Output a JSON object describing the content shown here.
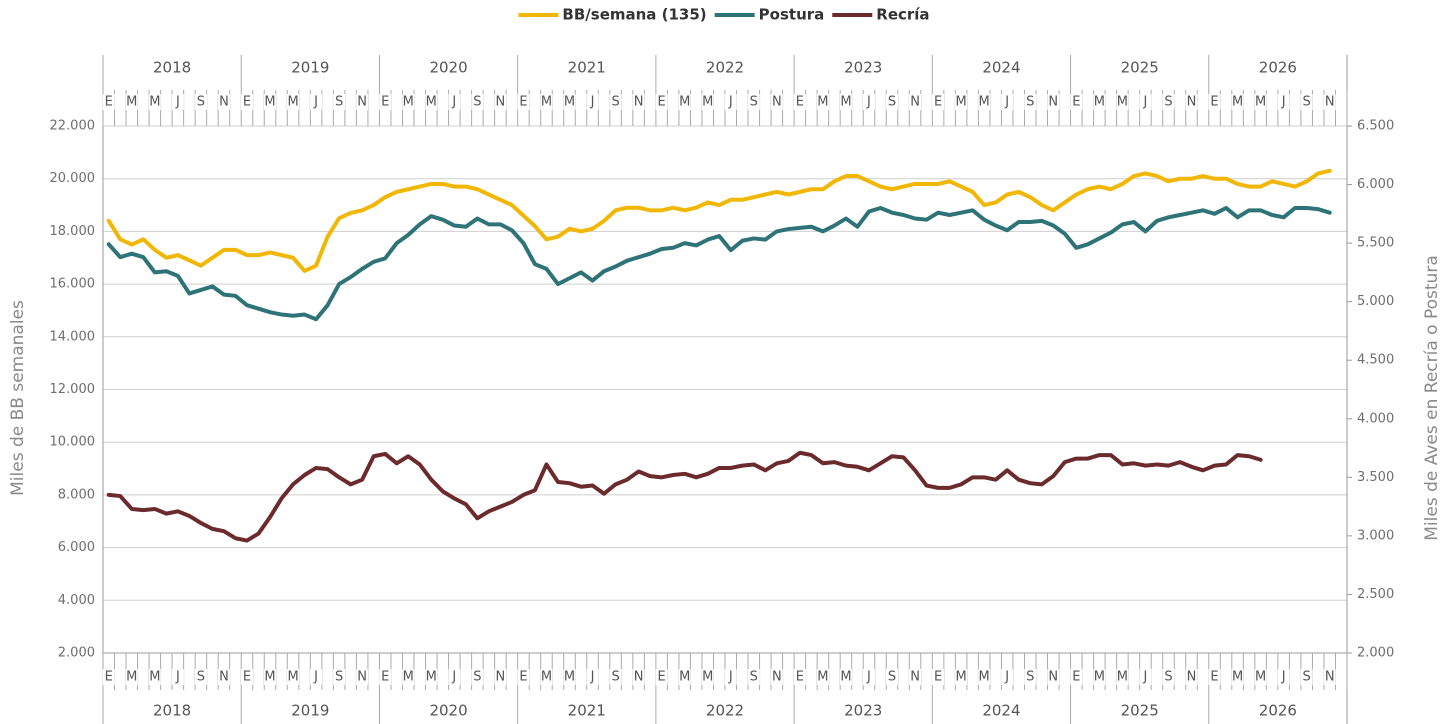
{
  "chart_data": {
    "type": "line",
    "years": [
      "2018",
      "2019",
      "2020",
      "2021",
      "2022",
      "2023",
      "2024",
      "2025",
      "2026"
    ],
    "categories": [
      "E",
      null,
      "M",
      null,
      "M",
      null,
      "J",
      null,
      "S",
      null,
      "N",
      null,
      "E",
      null,
      "M",
      null,
      "M",
      null,
      "J",
      null,
      "S",
      null,
      "N",
      null,
      "E",
      null,
      "M",
      null,
      "M",
      null,
      "J",
      null,
      "S",
      null,
      "N",
      null,
      "E",
      null,
      "M",
      null,
      "M",
      null,
      "J",
      null,
      "S",
      null,
      "N",
      null,
      "E",
      null,
      "M",
      null,
      "M",
      null,
      "J",
      null,
      "S",
      null,
      "N",
      null,
      "E",
      null,
      "M",
      null,
      "M",
      null,
      "J",
      null,
      "S",
      null,
      "N",
      null,
      "E",
      null,
      "M",
      null,
      "M",
      null,
      "J",
      null,
      "S",
      null,
      "N",
      null,
      "E",
      null,
      "M",
      null,
      "M",
      null,
      "J",
      null,
      "S",
      null,
      "N",
      null,
      "E",
      null,
      "M",
      null,
      "M",
      null,
      "J",
      null,
      "S",
      null,
      "N",
      null
    ],
    "series": [
      {
        "name": "BB/semana (135)",
        "color": "#f2b705",
        "values": [
          18400,
          17700,
          17500,
          17700,
          17300,
          17000,
          17100,
          16900,
          16700,
          17000,
          17300,
          17300,
          17100,
          17100,
          17200,
          17100,
          17000,
          16500,
          16700,
          17800,
          18500,
          18700,
          18800,
          19000,
          19300,
          19500,
          19600,
          19700,
          19800,
          19800,
          19700,
          19700,
          19600,
          19400,
          19200,
          19000,
          18600,
          18200,
          17700,
          17800,
          18100,
          18000,
          18100,
          18400,
          18800,
          18900,
          18900,
          18800,
          18800,
          18900,
          18800,
          18900,
          19100,
          19000,
          19200,
          19200,
          19300,
          19400,
          19500,
          19400,
          19500,
          19600,
          19600,
          19900,
          20100,
          20100,
          19900,
          19700,
          19600,
          19700,
          19800,
          19800,
          19800,
          19900,
          19700,
          19500,
          19000,
          19100,
          19400,
          19500,
          19300,
          19000,
          18800,
          19100,
          19400,
          19600,
          19700,
          19600,
          19800,
          20100,
          20200,
          20100,
          19900,
          20000,
          20000,
          20100,
          20000,
          20000,
          19800,
          19700,
          19700,
          19900,
          19800,
          19700,
          19900,
          20200,
          20300,
          null
        ]
      },
      {
        "name": "Postura",
        "color": "#2e7378",
        "axis": "y2",
        "values": [
          5490,
          5380,
          5410,
          5380,
          5250,
          5260,
          5220,
          5070,
          5100,
          5130,
          5060,
          5050,
          4970,
          4940,
          4910,
          4890,
          4880,
          4890,
          4850,
          4970,
          5150,
          5210,
          5280,
          5340,
          5370,
          5500,
          5570,
          5660,
          5730,
          5700,
          5650,
          5640,
          5710,
          5660,
          5660,
          5610,
          5500,
          5320,
          5280,
          5150,
          5200,
          5250,
          5180,
          5260,
          5300,
          5350,
          5380,
          5410,
          5450,
          5460,
          5500,
          5480,
          5530,
          5560,
          5440,
          5520,
          5540,
          5530,
          5600,
          5620,
          5630,
          5640,
          5600,
          5650,
          5710,
          5640,
          5770,
          5800,
          5760,
          5740,
          5710,
          5700,
          5760,
          5740,
          5760,
          5780,
          5700,
          5650,
          5610,
          5680,
          5680,
          5690,
          5650,
          5580,
          5460,
          5490,
          5540,
          5590,
          5660,
          5680,
          5600,
          5690,
          5720,
          5740,
          5760,
          5780,
          5750,
          5800,
          5720,
          5780,
          5780,
          5740,
          5720,
          5800,
          5800,
          5790,
          5760,
          null
        ]
      },
      {
        "name": "Recría",
        "color": "#6b2a2c",
        "axis": "y2",
        "values": [
          3350,
          3340,
          3230,
          3220,
          3230,
          3190,
          3210,
          3170,
          3110,
          3060,
          3040,
          2980,
          2960,
          3020,
          3160,
          3320,
          3440,
          3520,
          3580,
          3570,
          3500,
          3440,
          3480,
          3680,
          3700,
          3620,
          3680,
          3610,
          3480,
          3380,
          3320,
          3270,
          3150,
          3210,
          3250,
          3290,
          3350,
          3390,
          3610,
          3460,
          3450,
          3420,
          3430,
          3360,
          3440,
          3480,
          3550,
          3510,
          3500,
          3520,
          3530,
          3500,
          3530,
          3580,
          3580,
          3600,
          3610,
          3560,
          3620,
          3640,
          3710,
          3690,
          3620,
          3630,
          3600,
          3590,
          3560,
          3620,
          3680,
          3670,
          3560,
          3430,
          3410,
          3410,
          3440,
          3500,
          3500,
          3480,
          3560,
          3480,
          3450,
          3440,
          3510,
          3630,
          3660,
          3660,
          3690,
          3690,
          3610,
          3620,
          3600,
          3610,
          3600,
          3630,
          3590,
          3560,
          3600,
          3610,
          3690,
          3680,
          3650,
          null,
          null,
          null,
          null,
          null,
          null,
          null
        ]
      }
    ],
    "y_label": "Miles de BB semanales",
    "y2_label": "Miles de Aves en Recría o Postura",
    "ylim": [
      2000,
      22000
    ],
    "yticks": [
      {
        "value": 2000,
        "label": "2.000"
      },
      {
        "value": 4000,
        "label": "4.000"
      },
      {
        "value": 6000,
        "label": "6.000"
      },
      {
        "value": 8000,
        "label": "8.000"
      },
      {
        "value": 10000,
        "label": "10.000"
      },
      {
        "value": 12000,
        "label": "12.000"
      },
      {
        "value": 14000,
        "label": "14.000"
      },
      {
        "value": 16000,
        "label": "16.000"
      },
      {
        "value": 18000,
        "label": "18.000"
      },
      {
        "value": 20000,
        "label": "20.000"
      },
      {
        "value": 22000,
        "label": "22.000"
      }
    ],
    "y2lim": [
      2000,
      6500
    ],
    "y2ticks": [
      {
        "value": 2000,
        "label": "2.000"
      },
      {
        "value": 2500,
        "label": "2.500"
      },
      {
        "value": 3000,
        "label": "3.000"
      },
      {
        "value": 3500,
        "label": "3.500"
      },
      {
        "value": 4000,
        "label": "4.000"
      },
      {
        "value": 4500,
        "label": "4.500"
      },
      {
        "value": 5000,
        "label": "5.000"
      },
      {
        "value": 5500,
        "label": "5.500"
      },
      {
        "value": 6000,
        "label": "6.000"
      },
      {
        "value": 6500,
        "label": "6.500"
      }
    ],
    "grid": true,
    "legend": "top"
  }
}
